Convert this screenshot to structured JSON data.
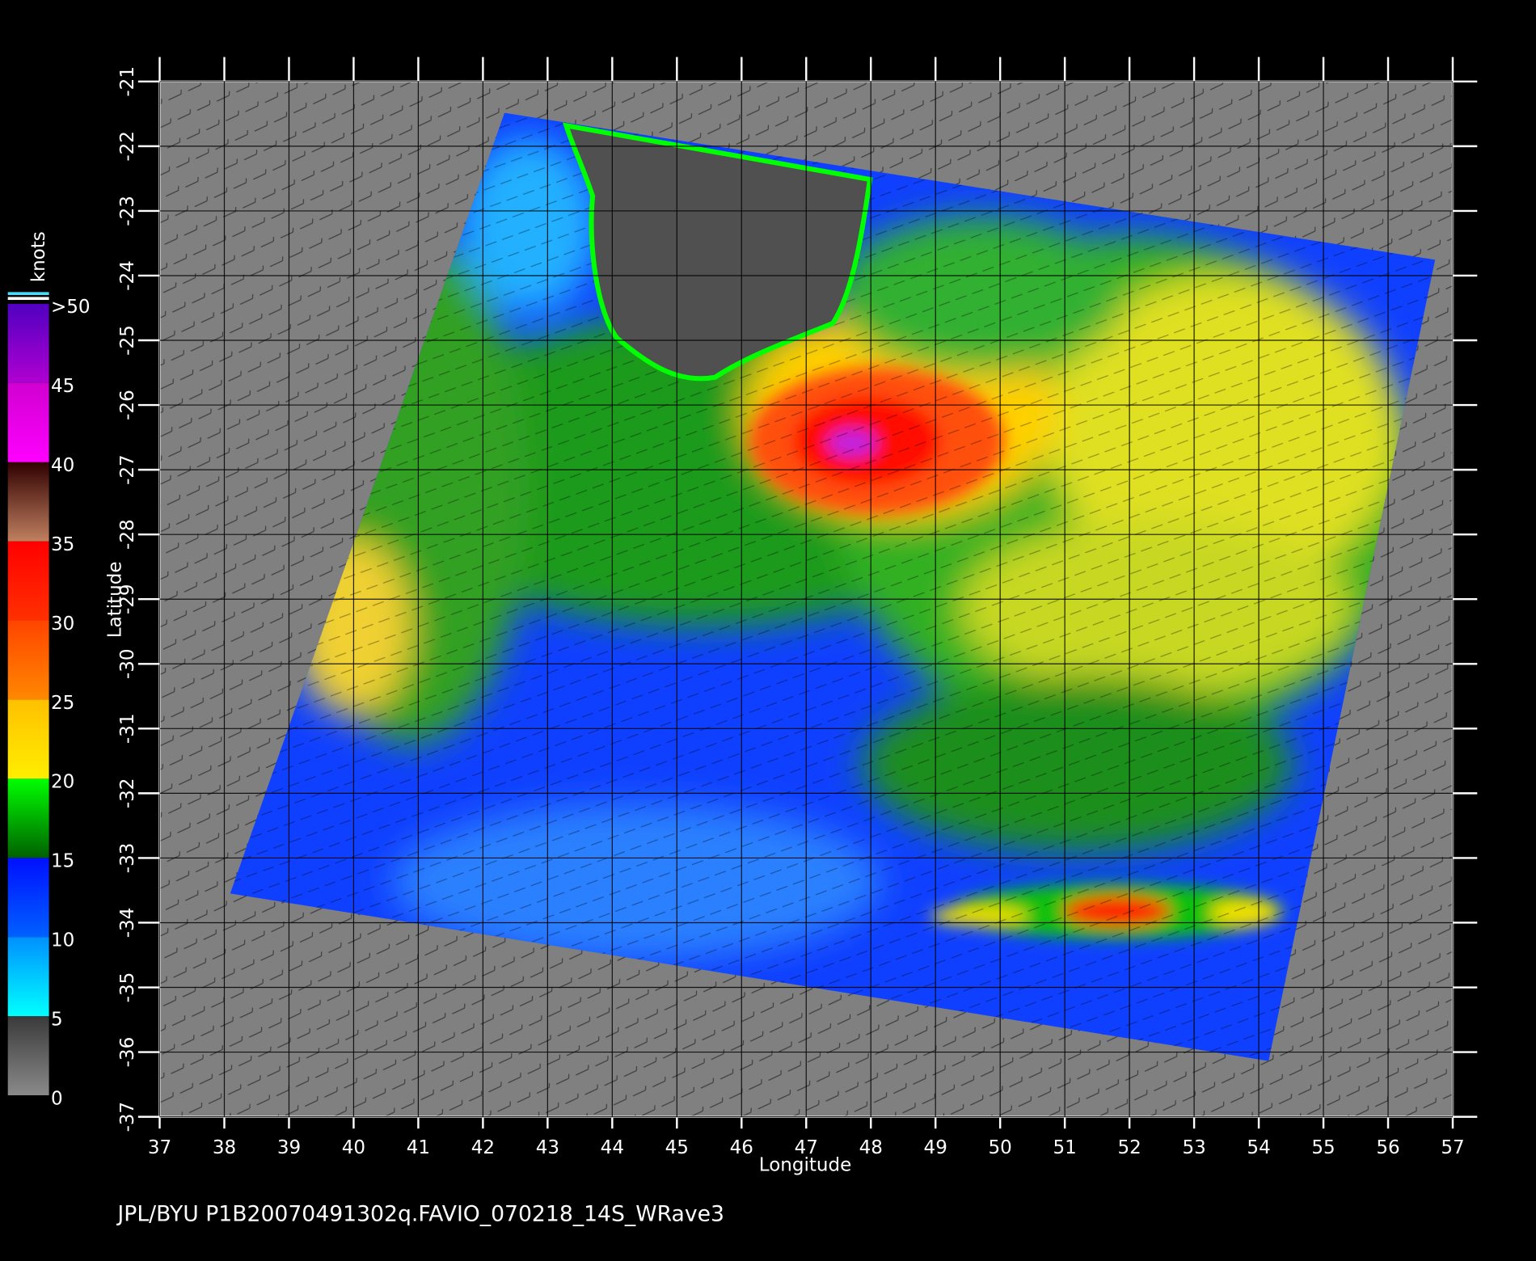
{
  "chart_data": {
    "type": "map",
    "x_label": "Longitude",
    "y_label": "Latitude",
    "caption": "JPL/BYU  P1B20070491302q.FAVIO_070218_14S_WRave3",
    "xlim": [
      37,
      57
    ],
    "ylim": [
      -37,
      -21
    ],
    "xticks": [
      37,
      38,
      39,
      40,
      41,
      42,
      43,
      44,
      45,
      46,
      47,
      48,
      49,
      50,
      51,
      52,
      53,
      54,
      55,
      56,
      57
    ],
    "yticks": [
      -37,
      -36,
      -35,
      -34,
      -33,
      -32,
      -31,
      -30,
      -29,
      -28,
      -27,
      -26,
      -25,
      -24,
      -23,
      -22,
      -21
    ],
    "colorbar": {
      "label": "knots",
      "ticks": [
        0,
        5,
        10,
        15,
        20,
        25,
        30,
        35,
        40,
        45,
        {
          "value": 50,
          "label": ">50"
        }
      ],
      "colors": [
        [
          "#8a8a8a",
          "#3a3a3a"
        ],
        [
          "#00ffff",
          "#0090ff"
        ],
        [
          "#0060ff",
          "#0010ff"
        ],
        [
          "#006000",
          "#00ff00"
        ],
        [
          "#ffee00",
          "#ffc000"
        ],
        [
          "#ff8800",
          "#ff4400"
        ],
        [
          "#ff3000",
          "#ff0000"
        ],
        [
          "#c08060",
          "#300000"
        ],
        [
          "#ff00ff",
          "#d000d0"
        ],
        [
          "#b000d0",
          "#5000c0"
        ]
      ]
    }
  }
}
